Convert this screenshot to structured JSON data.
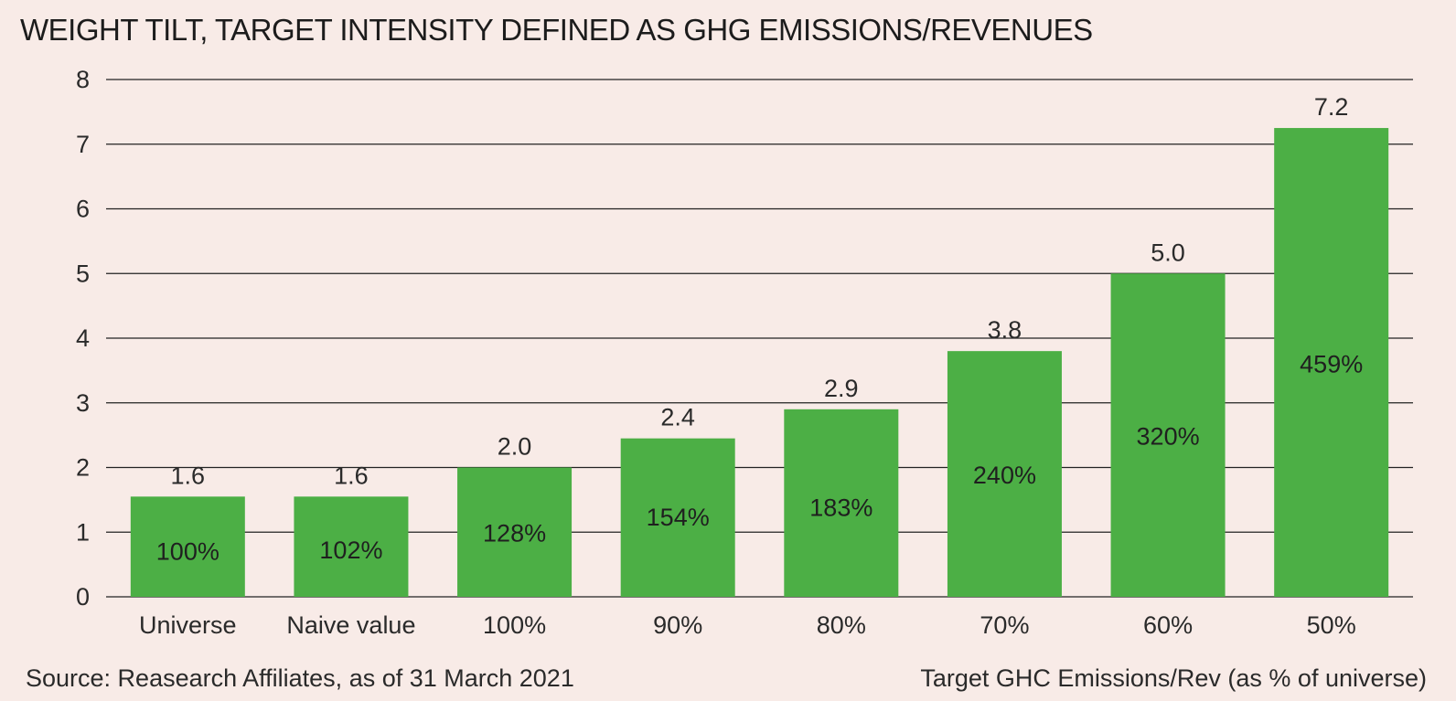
{
  "chart_data": {
    "type": "bar",
    "title": "WEIGHT TILT, TARGET INTENSITY DEFINED AS GHG EMISSIONS/REVENUES",
    "categories": [
      "Universe",
      "Naive value",
      "100%",
      "90%",
      "80%",
      "70%",
      "60%",
      "50%"
    ],
    "values": [
      1.55,
      1.55,
      2.0,
      2.45,
      2.9,
      3.8,
      5.0,
      7.25
    ],
    "value_labels": [
      "1.6",
      "1.6",
      "2.0",
      "2.4",
      "2.9",
      "3.8",
      "5.0",
      "7.2"
    ],
    "inner_labels": [
      "100%",
      "102%",
      "128%",
      "154%",
      "183%",
      "240%",
      "320%",
      "459%"
    ],
    "inner_label_values": [
      0.7,
      0.72,
      0.98,
      1.23,
      1.38,
      1.88,
      2.48,
      3.6
    ],
    "ylim": [
      0,
      8
    ],
    "yticks": [
      "0",
      "1",
      "2",
      "3",
      "4",
      "5",
      "6",
      "7",
      "8"
    ],
    "xlabel": "Target GHC Emissions/Rev (as % of universe)",
    "ylabel": "",
    "grid": true,
    "bar_color": "#4caf45",
    "grid_color": "#222222"
  },
  "footer": {
    "source": "Source: Reasearch Affiliates, as of 31 March 2021",
    "axis_note": "Target GHC Emissions/Rev (as % of universe)"
  }
}
